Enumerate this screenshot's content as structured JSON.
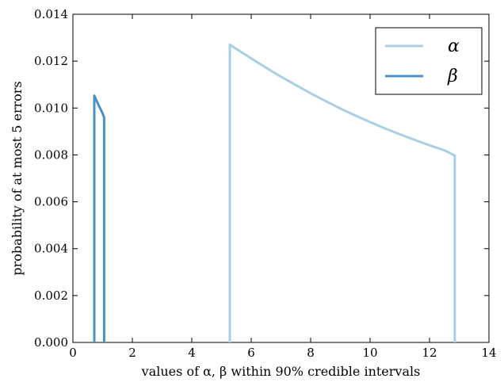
{
  "chart_data": {
    "type": "line",
    "title": "",
    "xlabel": "values of α, β within 90% credible intervals",
    "ylabel": "probability of at most 5 errors",
    "xlim": [
      0,
      14
    ],
    "ylim": [
      0,
      0.014
    ],
    "xticks": [
      "0",
      "2",
      "4",
      "6",
      "8",
      "10",
      "12",
      "14"
    ],
    "yticks": [
      "0.000",
      "0.002",
      "0.004",
      "0.006",
      "0.008",
      "0.010",
      "0.012",
      "0.014"
    ],
    "grid": false,
    "legend_position": "top-right",
    "series": [
      {
        "name": "α",
        "color": "#a9cfe6",
        "x": [
          5.28,
          5.28,
          5.5,
          6.0,
          6.5,
          7.0,
          7.5,
          8.0,
          8.5,
          9.0,
          9.5,
          10.0,
          10.5,
          11.0,
          11.5,
          12.0,
          12.5,
          12.85,
          12.85
        ],
        "y": [
          0.0,
          0.0127,
          0.01252,
          0.01212,
          0.01172,
          0.01134,
          0.01098,
          0.01063,
          0.0103,
          0.00998,
          0.00968,
          0.0094,
          0.00913,
          0.00888,
          0.00864,
          0.00841,
          0.0082,
          0.00797,
          0.0
        ]
      },
      {
        "name": "β",
        "color": "#4d91c4",
        "x": [
          0.72,
          0.72,
          0.8,
          0.9,
          1.0,
          1.05,
          1.05
        ],
        "y": [
          0.0,
          0.01053,
          0.0103,
          0.01003,
          0.00977,
          0.0096,
          0.0
        ]
      }
    ]
  }
}
